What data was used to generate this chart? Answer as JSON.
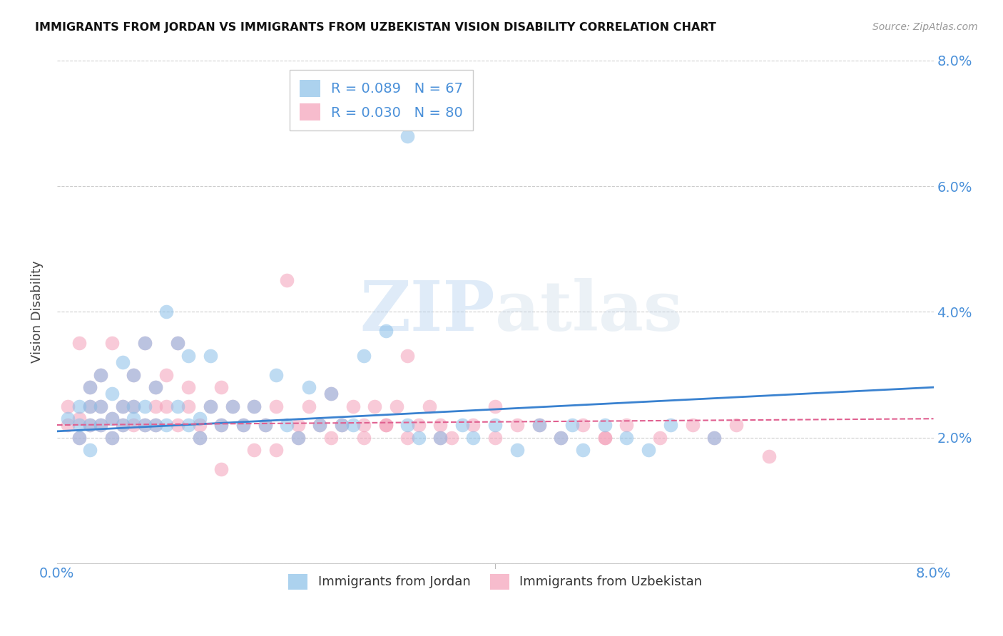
{
  "title": "IMMIGRANTS FROM JORDAN VS IMMIGRANTS FROM UZBEKISTAN VISION DISABILITY CORRELATION CHART",
  "source": "Source: ZipAtlas.com",
  "ylabel": "Vision Disability",
  "xlim": [
    0.0,
    0.08
  ],
  "ylim": [
    0.0,
    0.08
  ],
  "jordan_color": "#89bfe8",
  "uzbekistan_color": "#f4a0b8",
  "jordan_R": 0.089,
  "jordan_N": 67,
  "uzbekistan_R": 0.03,
  "uzbekistan_N": 80,
  "jordan_line_color": "#3a82d0",
  "uzbekistan_line_color": "#e06090",
  "watermark": "ZIPatlas",
  "background_color": "#ffffff",
  "jordan_scatter_x": [
    0.001,
    0.002,
    0.002,
    0.002,
    0.003,
    0.003,
    0.003,
    0.003,
    0.004,
    0.004,
    0.004,
    0.005,
    0.005,
    0.005,
    0.006,
    0.006,
    0.006,
    0.007,
    0.007,
    0.007,
    0.008,
    0.008,
    0.008,
    0.009,
    0.009,
    0.01,
    0.01,
    0.011,
    0.011,
    0.012,
    0.012,
    0.013,
    0.013,
    0.014,
    0.014,
    0.015,
    0.016,
    0.017,
    0.018,
    0.019,
    0.02,
    0.021,
    0.022,
    0.023,
    0.024,
    0.025,
    0.026,
    0.027,
    0.028,
    0.03,
    0.032,
    0.033,
    0.035,
    0.037,
    0.038,
    0.04,
    0.042,
    0.044,
    0.046,
    0.047,
    0.048,
    0.05,
    0.052,
    0.054,
    0.056,
    0.06,
    0.032
  ],
  "jordan_scatter_y": [
    0.023,
    0.025,
    0.022,
    0.02,
    0.028,
    0.025,
    0.022,
    0.018,
    0.03,
    0.025,
    0.022,
    0.023,
    0.027,
    0.02,
    0.025,
    0.032,
    0.022,
    0.03,
    0.023,
    0.025,
    0.035,
    0.022,
    0.025,
    0.022,
    0.028,
    0.04,
    0.022,
    0.035,
    0.025,
    0.033,
    0.022,
    0.023,
    0.02,
    0.033,
    0.025,
    0.022,
    0.025,
    0.022,
    0.025,
    0.022,
    0.03,
    0.022,
    0.02,
    0.028,
    0.022,
    0.027,
    0.022,
    0.022,
    0.033,
    0.037,
    0.022,
    0.02,
    0.02,
    0.022,
    0.02,
    0.022,
    0.018,
    0.022,
    0.02,
    0.022,
    0.018,
    0.022,
    0.02,
    0.018,
    0.022,
    0.02,
    0.068
  ],
  "uzbekistan_scatter_x": [
    0.001,
    0.001,
    0.002,
    0.002,
    0.002,
    0.003,
    0.003,
    0.003,
    0.004,
    0.004,
    0.004,
    0.005,
    0.005,
    0.005,
    0.006,
    0.006,
    0.007,
    0.007,
    0.007,
    0.008,
    0.008,
    0.009,
    0.009,
    0.009,
    0.01,
    0.01,
    0.011,
    0.011,
    0.012,
    0.012,
    0.013,
    0.013,
    0.014,
    0.015,
    0.015,
    0.016,
    0.017,
    0.018,
    0.019,
    0.02,
    0.021,
    0.022,
    0.023,
    0.024,
    0.025,
    0.026,
    0.027,
    0.028,
    0.029,
    0.03,
    0.031,
    0.032,
    0.033,
    0.034,
    0.035,
    0.036,
    0.038,
    0.04,
    0.042,
    0.044,
    0.046,
    0.048,
    0.05,
    0.052,
    0.055,
    0.058,
    0.06,
    0.062,
    0.065,
    0.032,
    0.025,
    0.02,
    0.015,
    0.018,
    0.022,
    0.028,
    0.03,
    0.035,
    0.04,
    0.05
  ],
  "uzbekistan_scatter_y": [
    0.025,
    0.022,
    0.035,
    0.023,
    0.02,
    0.028,
    0.025,
    0.022,
    0.03,
    0.025,
    0.022,
    0.035,
    0.023,
    0.02,
    0.025,
    0.022,
    0.03,
    0.025,
    0.022,
    0.035,
    0.022,
    0.028,
    0.025,
    0.022,
    0.03,
    0.025,
    0.035,
    0.022,
    0.028,
    0.025,
    0.022,
    0.02,
    0.025,
    0.028,
    0.022,
    0.025,
    0.022,
    0.025,
    0.022,
    0.025,
    0.045,
    0.022,
    0.025,
    0.022,
    0.027,
    0.022,
    0.025,
    0.022,
    0.025,
    0.022,
    0.025,
    0.02,
    0.022,
    0.025,
    0.022,
    0.02,
    0.022,
    0.025,
    0.022,
    0.022,
    0.02,
    0.022,
    0.02,
    0.022,
    0.02,
    0.022,
    0.02,
    0.022,
    0.017,
    0.033,
    0.02,
    0.018,
    0.015,
    0.018,
    0.02,
    0.02,
    0.022,
    0.02,
    0.02,
    0.02
  ]
}
